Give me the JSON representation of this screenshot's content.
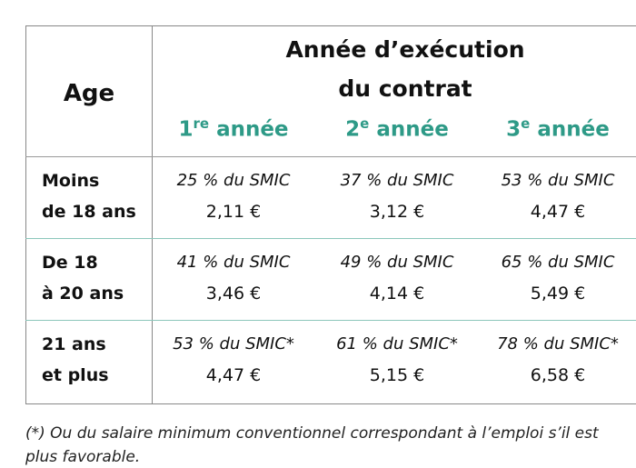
{
  "table": {
    "corner": "Age",
    "group_header": [
      "Année d’exécution",
      "du contrat"
    ],
    "columns": [
      {
        "num": "1",
        "sup": "re",
        "word": "année"
      },
      {
        "num": "2",
        "sup": "e",
        "word": "année"
      },
      {
        "num": "3",
        "sup": "e",
        "word": "année"
      }
    ],
    "rows": [
      {
        "label": [
          "Moins",
          "de 18 ans"
        ],
        "cells": [
          {
            "rate": "25 % du SMIC",
            "amount": "2,11 €"
          },
          {
            "rate": "37 % du SMIC",
            "amount": "3,12 €"
          },
          {
            "rate": "53 % du SMIC",
            "amount": "4,47 €"
          }
        ]
      },
      {
        "label": [
          "De 18",
          "à 20 ans"
        ],
        "cells": [
          {
            "rate": "41 % du SMIC",
            "amount": "3,46 €"
          },
          {
            "rate": "49 % du SMIC",
            "amount": "4,14 €"
          },
          {
            "rate": "65 % du SMIC",
            "amount": "5,49 €"
          }
        ]
      },
      {
        "label": [
          "21 ans",
          "et plus"
        ],
        "cells": [
          {
            "rate": "53 % du SMIC*",
            "amount": "4,47 €"
          },
          {
            "rate": "61 % du SMIC*",
            "amount": "5,15 €"
          },
          {
            "rate": "78 % du SMIC*",
            "amount": "6,58 €"
          }
        ]
      }
    ]
  },
  "footnote": [
    "(*) Ou du salaire minimum conventionnel correspondant à l’emploi s’il est",
    "plus favorable."
  ]
}
